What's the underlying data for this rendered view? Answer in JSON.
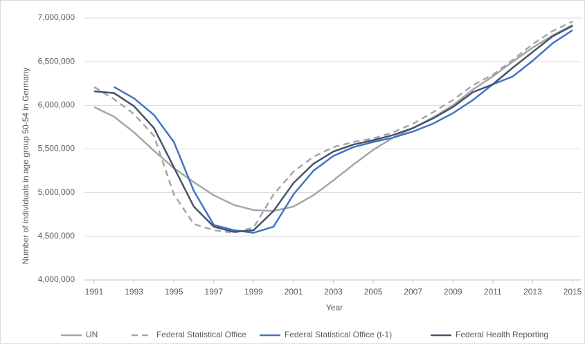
{
  "chart_data": {
    "type": "line",
    "x_label": "Year",
    "y_label": "Number of individuals in age group 50-54 in Germany",
    "x": [
      1991,
      1992,
      1993,
      1994,
      1995,
      1996,
      1997,
      1998,
      1999,
      2000,
      2001,
      2002,
      2003,
      2004,
      2005,
      2006,
      2007,
      2008,
      2009,
      2010,
      2011,
      2012,
      2013,
      2014,
      2015
    ],
    "xlim": [
      1991,
      2015
    ],
    "xticks": [
      1991,
      1993,
      1995,
      1997,
      1999,
      2001,
      2003,
      2005,
      2007,
      2009,
      2011,
      2013,
      2015
    ],
    "ylim": [
      4000000,
      7000000
    ],
    "yticks": [
      {
        "value": 4000000,
        "label": "4,000,000"
      },
      {
        "value": 4500000,
        "label": "4,500,000"
      },
      {
        "value": 5000000,
        "label": "5,000,000"
      },
      {
        "value": 5500000,
        "label": "5,500,000"
      },
      {
        "value": 6000000,
        "label": "6,000,000"
      },
      {
        "value": 6500000,
        "label": "6,500,000"
      },
      {
        "value": 7000000,
        "label": "7,000,000"
      }
    ],
    "grid": true,
    "legend": "bottom",
    "series": [
      {
        "name": "UN",
        "color": "#a5a5a5",
        "dashed": false,
        "values": [
          5980000,
          5870000,
          5690000,
          5480000,
          5280000,
          5120000,
          4970000,
          4860000,
          4800000,
          4790000,
          4840000,
          4970000,
          5140000,
          5320000,
          5490000,
          5630000,
          5740000,
          5860000,
          6000000,
          6180000,
          6330000,
          6500000,
          6660000,
          6800000,
          6920000
        ]
      },
      {
        "name": "Federal Statistical Office",
        "color": "#a5a5a5",
        "dashed": true,
        "values": [
          6210000,
          6070000,
          5900000,
          5650000,
          4980000,
          4640000,
          4570000,
          4540000,
          4600000,
          4980000,
          5240000,
          5410000,
          5520000,
          5580000,
          5620000,
          5690000,
          5790000,
          5920000,
          6060000,
          6230000,
          6350000,
          6520000,
          6700000,
          6850000,
          6960000
        ]
      },
      {
        "name": "Federal Statistical Office (t-1)",
        "color": "#4472c4",
        "dashed": false,
        "values": [
          null,
          6210000,
          6080000,
          5890000,
          5580000,
          5020000,
          4630000,
          4570000,
          4540000,
          4610000,
          4980000,
          5250000,
          5420000,
          5520000,
          5580000,
          5630000,
          5700000,
          5790000,
          5910000,
          6060000,
          6240000,
          6330000,
          6510000,
          6710000,
          6860000
        ]
      },
      {
        "name": "Federal Health Reporting",
        "color": "#44546a",
        "dashed": false,
        "values": [
          6160000,
          6140000,
          5990000,
          5740000,
          5290000,
          4840000,
          4610000,
          4550000,
          4570000,
          4790000,
          5110000,
          5330000,
          5470000,
          5550000,
          5600000,
          5660000,
          5740000,
          5850000,
          5980000,
          6150000,
          6240000,
          6430000,
          6610000,
          6790000,
          6910000
        ]
      }
    ]
  }
}
